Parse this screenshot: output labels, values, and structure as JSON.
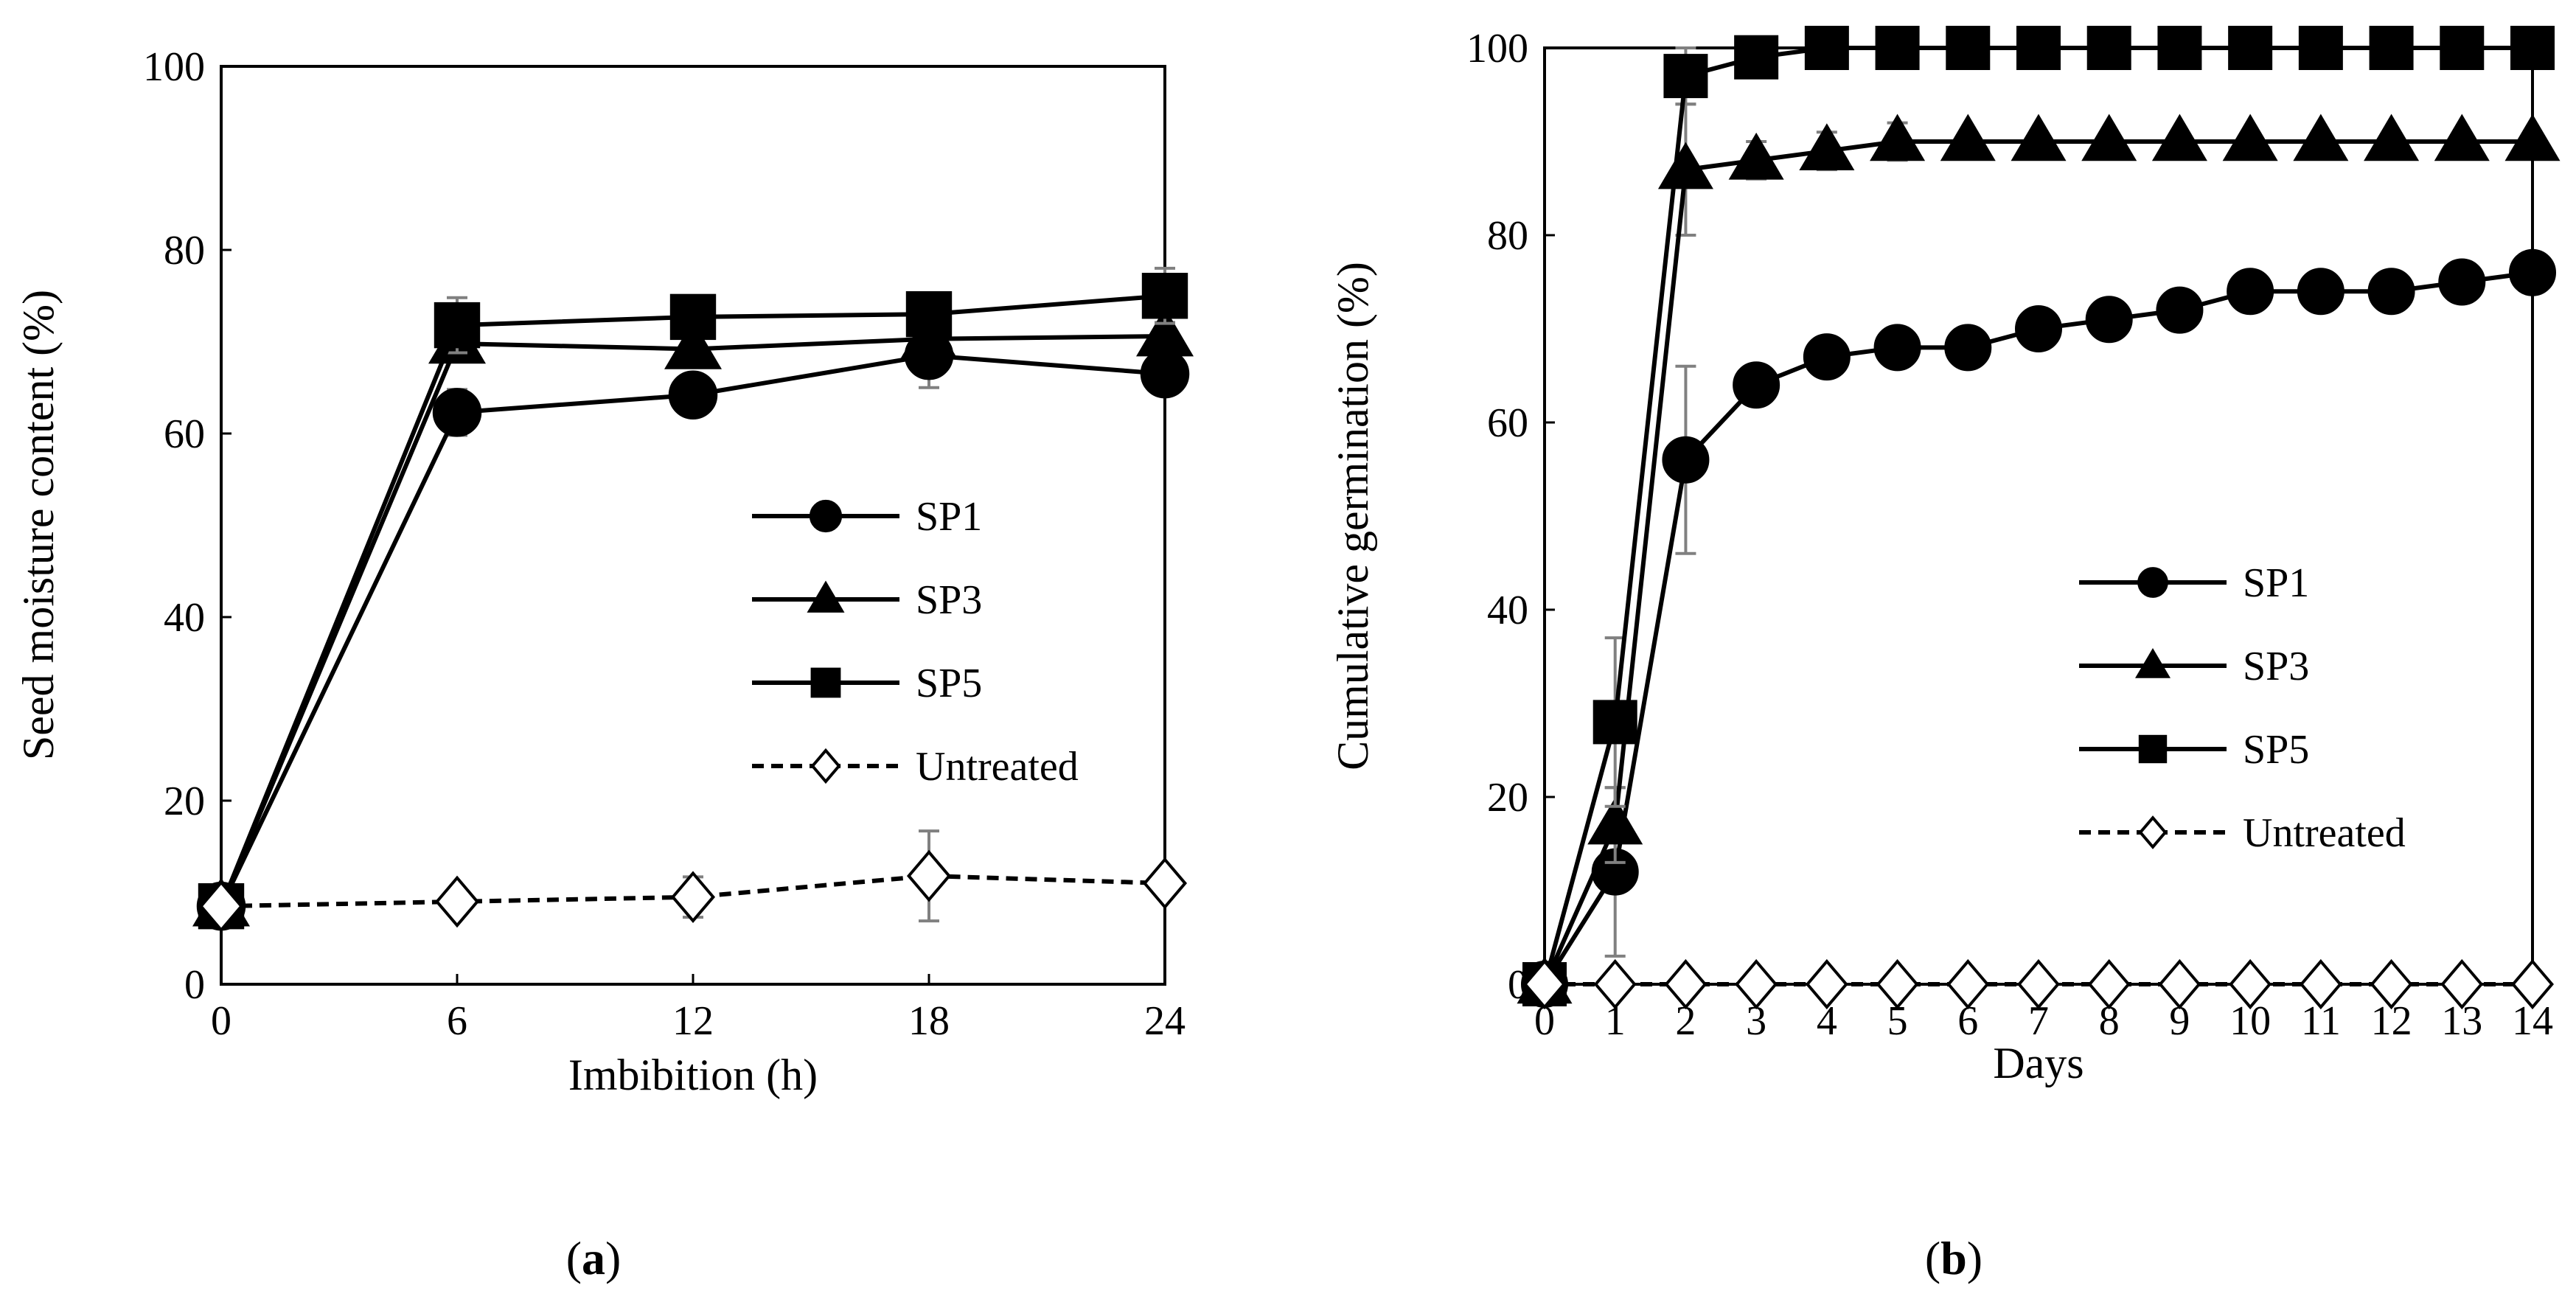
{
  "chart_data": [
    {
      "type": "line",
      "panel_label": "a",
      "xlabel": "Imbibition (h)",
      "ylabel": "Seed moisture content (%)",
      "x": [
        0,
        6,
        12,
        18,
        24
      ],
      "x_ticks": [
        "0",
        "6",
        "12",
        "18",
        "24"
      ],
      "y_ticks": [
        "0",
        "20",
        "40",
        "60",
        "80",
        "100"
      ],
      "xlim": [
        0,
        24
      ],
      "ylim": [
        0,
        100
      ],
      "legend_position": "right-center",
      "series": [
        {
          "name": "SP1",
          "marker": "circle",
          "dash": "solid",
          "values": [
            8.5,
            62.3,
            64.2,
            68.5,
            66.5
          ],
          "errors": [
            0,
            2.5,
            2.0,
            3.5,
            1.5
          ]
        },
        {
          "name": "SP3",
          "marker": "triangle",
          "dash": "solid",
          "values": [
            8.5,
            69.8,
            69.2,
            70.3,
            70.6
          ],
          "errors": [
            0,
            2.0,
            1.5,
            1.0,
            1.5
          ]
        },
        {
          "name": "SP5",
          "marker": "square",
          "dash": "solid",
          "values": [
            8.5,
            71.8,
            72.7,
            73.0,
            75.0
          ],
          "errors": [
            0,
            3.0,
            2.0,
            1.0,
            3.0
          ]
        },
        {
          "name": "Untreated",
          "marker": "diamond-open",
          "dash": "dashed",
          "values": [
            8.5,
            9.0,
            9.5,
            11.8,
            11.0
          ],
          "errors": [
            0,
            0.5,
            2.2,
            4.9,
            1.0
          ]
        }
      ]
    },
    {
      "type": "line",
      "panel_label": "b",
      "xlabel": "Days",
      "ylabel": "Cumulative germination (%)",
      "x": [
        0,
        1,
        2,
        3,
        4,
        5,
        6,
        7,
        8,
        9,
        10,
        11,
        12,
        13,
        14
      ],
      "x_ticks": [
        "0",
        "1",
        "2",
        "3",
        "4",
        "5",
        "6",
        "7",
        "8",
        "9",
        "10",
        "11",
        "12",
        "13",
        "14"
      ],
      "y_ticks": [
        "0",
        "20",
        "40",
        "60",
        "80",
        "100"
      ],
      "xlim": [
        0,
        14
      ],
      "ylim": [
        0,
        100
      ],
      "legend_position": "right-center",
      "series": [
        {
          "name": "SP1",
          "marker": "circle",
          "dash": "solid",
          "values": [
            0,
            12,
            56,
            64,
            67,
            68,
            68,
            70,
            71,
            72,
            74,
            74,
            74,
            75,
            76
          ],
          "errors": [
            0,
            9,
            10,
            2,
            0,
            0,
            0,
            0,
            0,
            0,
            0,
            0,
            0,
            0,
            0
          ]
        },
        {
          "name": "SP3",
          "marker": "triangle",
          "dash": "solid",
          "values": [
            0,
            17,
            87,
            88,
            89,
            90,
            90,
            90,
            90,
            90,
            90,
            90,
            90,
            90,
            90
          ],
          "errors": [
            0,
            4,
            7,
            2,
            2,
            2,
            0,
            0,
            0,
            0,
            0,
            0,
            0,
            0,
            0
          ]
        },
        {
          "name": "SP5",
          "marker": "square",
          "dash": "solid",
          "values": [
            0,
            28,
            97,
            99,
            100,
            100,
            100,
            100,
            100,
            100,
            100,
            100,
            100,
            100,
            100
          ],
          "errors": [
            0,
            9,
            3,
            1,
            0,
            0,
            0,
            0,
            0,
            0,
            0,
            0,
            0,
            0,
            0
          ]
        },
        {
          "name": "Untreated",
          "marker": "diamond-open",
          "dash": "dashed",
          "values": [
            0,
            0,
            0,
            0,
            0,
            0,
            0,
            0,
            0,
            0,
            0,
            0,
            0,
            0,
            0
          ],
          "errors": [
            0,
            0,
            0,
            0,
            0,
            0,
            0,
            0,
            0,
            0,
            0,
            0,
            0,
            0,
            0
          ]
        }
      ]
    }
  ],
  "colors": {
    "line": "#000000",
    "error_bar": "#808080",
    "open_marker_fill": "#ffffff"
  }
}
